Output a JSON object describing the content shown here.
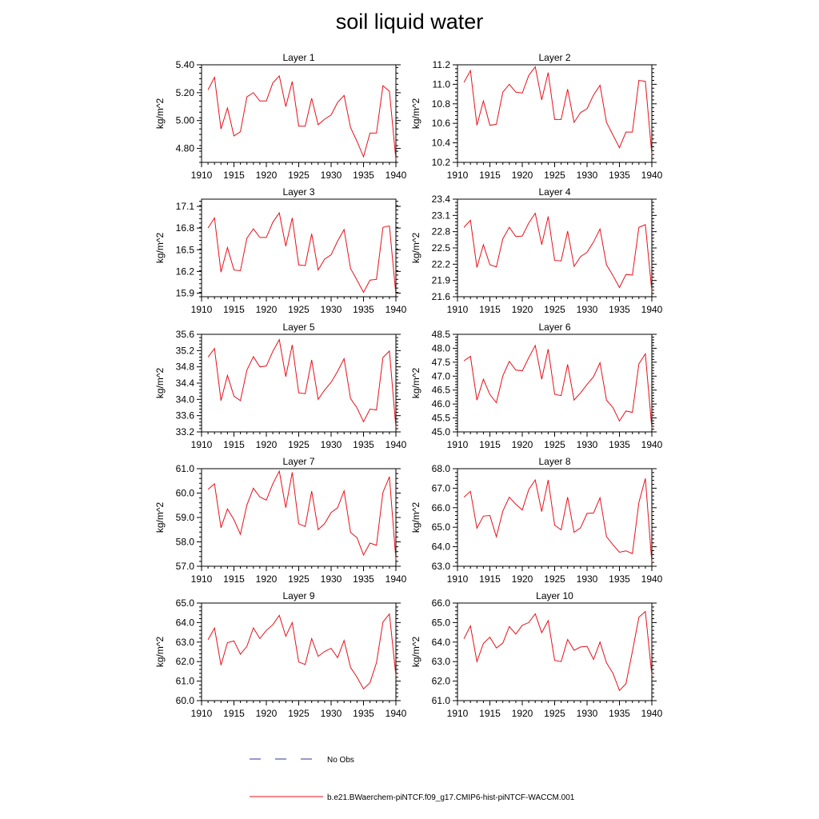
{
  "title": "soil liquid water",
  "legend": {
    "obs_label": "No Obs",
    "obs_color": "#2b3a8c",
    "model_label": "b.e21.BWaerchem-piNTCF.f09_g17.CMIP6-hist-piNTCF-WACCM.001",
    "model_color": "#e8101a"
  },
  "chart_data": [
    {
      "type": "line",
      "title": "Layer 1",
      "ylabel": "kg/m^2",
      "xlim": [
        1910,
        1940
      ],
      "ylim": [
        4.7,
        5.4
      ],
      "xticks": [
        "1910",
        "1915",
        "1920",
        "1925",
        "1930",
        "1935",
        "1940"
      ],
      "yticks": [
        "4.80",
        "5.00",
        "5.20",
        "5.40"
      ],
      "series": [
        {
          "x": [
            1911,
            1912,
            1913,
            1914,
            1915,
            1916,
            1917,
            1918,
            1919,
            1920,
            1921,
            1922,
            1923,
            1924,
            1925,
            1926,
            1927,
            1928,
            1929,
            1930,
            1931,
            1932,
            1933,
            1934,
            1935,
            1936,
            1937,
            1938,
            1939,
            1940
          ],
          "values": [
            5.22,
            5.31,
            4.94,
            5.09,
            4.89,
            4.92,
            5.17,
            5.2,
            5.14,
            5.14,
            5.27,
            5.32,
            5.1,
            5.28,
            4.96,
            4.96,
            5.16,
            4.97,
            5.01,
            5.04,
            5.13,
            5.18,
            4.95,
            4.85,
            4.74,
            4.91,
            4.91,
            5.25,
            5.21,
            4.72
          ]
        }
      ]
    },
    {
      "type": "line",
      "title": "Layer 2",
      "ylabel": "kg/m^2",
      "xlim": [
        1910,
        1940
      ],
      "ylim": [
        10.2,
        11.2
      ],
      "xticks": [
        "1910",
        "1915",
        "1920",
        "1925",
        "1930",
        "1935",
        "1940"
      ],
      "yticks": [
        "10.2",
        "10.4",
        "10.6",
        "10.8",
        "11.0",
        "11.2"
      ],
      "series": [
        {
          "x": [
            1911,
            1912,
            1913,
            1914,
            1915,
            1916,
            1917,
            1918,
            1919,
            1920,
            1921,
            1922,
            1923,
            1924,
            1925,
            1926,
            1927,
            1928,
            1929,
            1930,
            1931,
            1932,
            1933,
            1934,
            1935,
            1936,
            1937,
            1938,
            1939,
            1940
          ],
          "values": [
            11.02,
            11.14,
            10.58,
            10.83,
            10.58,
            10.59,
            10.92,
            11.0,
            10.92,
            10.91,
            11.09,
            11.18,
            10.84,
            11.12,
            10.64,
            10.64,
            10.95,
            10.61,
            10.71,
            10.75,
            10.89,
            10.99,
            10.61,
            10.48,
            10.35,
            10.51,
            10.51,
            11.04,
            11.03,
            10.28
          ]
        }
      ]
    },
    {
      "type": "line",
      "title": "Layer 3",
      "ylabel": "kg/m^2",
      "xlim": [
        1910,
        1940
      ],
      "ylim": [
        15.85,
        17.2
      ],
      "xticks": [
        "1910",
        "1915",
        "1920",
        "1925",
        "1930",
        "1935",
        "1940"
      ],
      "yticks": [
        "15.9",
        "16.2",
        "16.5",
        "16.8",
        "17.1"
      ],
      "series": [
        {
          "x": [
            1911,
            1912,
            1913,
            1914,
            1915,
            1916,
            1917,
            1918,
            1919,
            1920,
            1921,
            1922,
            1923,
            1924,
            1925,
            1926,
            1927,
            1928,
            1929,
            1930,
            1931,
            1932,
            1933,
            1934,
            1935,
            1936,
            1937,
            1938,
            1939,
            1940
          ],
          "values": [
            16.8,
            16.94,
            16.19,
            16.53,
            16.22,
            16.21,
            16.66,
            16.79,
            16.67,
            16.67,
            16.88,
            17.01,
            16.55,
            16.94,
            16.29,
            16.28,
            16.72,
            16.22,
            16.37,
            16.43,
            16.62,
            16.78,
            16.24,
            16.08,
            15.91,
            16.08,
            16.09,
            16.81,
            16.83,
            15.88
          ]
        }
      ]
    },
    {
      "type": "line",
      "title": "Layer 4",
      "ylabel": "kg/m^2",
      "xlim": [
        1910,
        1940
      ],
      "ylim": [
        21.6,
        23.4
      ],
      "xticks": [
        "1910",
        "1915",
        "1920",
        "1925",
        "1930",
        "1935",
        "1940"
      ],
      "yticks": [
        "21.6",
        "21.9",
        "22.2",
        "22.5",
        "22.8",
        "23.1",
        "23.4"
      ],
      "series": [
        {
          "x": [
            1911,
            1912,
            1913,
            1914,
            1915,
            1916,
            1917,
            1918,
            1919,
            1920,
            1921,
            1922,
            1923,
            1924,
            1925,
            1926,
            1927,
            1928,
            1929,
            1930,
            1931,
            1932,
            1933,
            1934,
            1935,
            1936,
            1937,
            1938,
            1939,
            1940
          ],
          "values": [
            22.88,
            23.01,
            22.14,
            22.56,
            22.19,
            22.15,
            22.67,
            22.88,
            22.71,
            22.72,
            22.96,
            23.14,
            22.56,
            23.08,
            22.27,
            22.26,
            22.81,
            22.16,
            22.34,
            22.42,
            22.61,
            22.85,
            22.19,
            21.99,
            21.77,
            22.01,
            22.0,
            22.88,
            22.93,
            21.7
          ]
        }
      ]
    },
    {
      "type": "line",
      "title": "Layer 5",
      "ylabel": "kg/m^2",
      "xlim": [
        1910,
        1940
      ],
      "ylim": [
        33.2,
        35.6
      ],
      "xticks": [
        "1910",
        "1915",
        "1920",
        "1925",
        "1930",
        "1935",
        "1940"
      ],
      "yticks": [
        "33.2",
        "33.6",
        "34.0",
        "34.4",
        "34.8",
        "35.2",
        "35.6"
      ],
      "series": [
        {
          "x": [
            1911,
            1912,
            1913,
            1914,
            1915,
            1916,
            1917,
            1918,
            1919,
            1920,
            1921,
            1922,
            1923,
            1924,
            1925,
            1926,
            1927,
            1928,
            1929,
            1930,
            1931,
            1932,
            1933,
            1934,
            1935,
            1936,
            1937,
            1938,
            1939,
            1940
          ],
          "values": [
            35.04,
            35.25,
            33.97,
            34.59,
            34.08,
            33.97,
            34.72,
            35.05,
            34.8,
            34.82,
            35.18,
            35.47,
            34.56,
            35.34,
            34.16,
            34.14,
            34.97,
            34.0,
            34.23,
            34.42,
            34.69,
            35.0,
            34.02,
            33.79,
            33.45,
            33.76,
            33.74,
            35.03,
            35.19,
            33.31
          ]
        }
      ]
    },
    {
      "type": "line",
      "title": "Layer 6",
      "ylabel": "kg/m^2",
      "xlim": [
        1910,
        1940
      ],
      "ylim": [
        45.0,
        48.5
      ],
      "xticks": [
        "1910",
        "1915",
        "1920",
        "1925",
        "1930",
        "1935",
        "1940"
      ],
      "yticks": [
        "45.0",
        "45.5",
        "46.0",
        "46.5",
        "47.0",
        "47.5",
        "48.0",
        "48.5"
      ],
      "series": [
        {
          "x": [
            1911,
            1912,
            1913,
            1914,
            1915,
            1916,
            1917,
            1918,
            1919,
            1920,
            1921,
            1922,
            1923,
            1924,
            1925,
            1926,
            1927,
            1928,
            1929,
            1930,
            1931,
            1932,
            1933,
            1934,
            1935,
            1936,
            1937,
            1938,
            1939,
            1940
          ],
          "values": [
            47.55,
            47.71,
            46.14,
            46.89,
            46.34,
            46.05,
            47.01,
            47.53,
            47.22,
            47.19,
            47.66,
            48.1,
            46.89,
            47.97,
            46.35,
            46.3,
            47.42,
            46.14,
            46.4,
            46.7,
            46.98,
            47.48,
            46.14,
            45.87,
            45.39,
            45.75,
            45.7,
            47.44,
            47.8,
            45.13
          ]
        }
      ]
    },
    {
      "type": "line",
      "title": "Layer 7",
      "ylabel": "kg/m^2",
      "xlim": [
        1910,
        1940
      ],
      "ylim": [
        57.0,
        61.0
      ],
      "xticks": [
        "1910",
        "1915",
        "1920",
        "1925",
        "1930",
        "1935",
        "1940"
      ],
      "yticks": [
        "57.0",
        "58.0",
        "59.0",
        "60.0",
        "61.0"
      ],
      "series": [
        {
          "x": [
            1911,
            1912,
            1913,
            1914,
            1915,
            1916,
            1917,
            1918,
            1919,
            1920,
            1921,
            1922,
            1923,
            1924,
            1925,
            1926,
            1927,
            1928,
            1929,
            1930,
            1931,
            1932,
            1933,
            1934,
            1935,
            1936,
            1937,
            1938,
            1939,
            1940
          ],
          "values": [
            60.15,
            60.38,
            58.58,
            59.35,
            58.91,
            58.31,
            59.51,
            60.2,
            59.84,
            59.71,
            60.38,
            60.9,
            59.4,
            60.85,
            58.74,
            58.63,
            60.08,
            58.5,
            58.75,
            59.2,
            59.4,
            60.09,
            58.39,
            58.17,
            57.46,
            57.95,
            57.86,
            60.03,
            60.67,
            57.27
          ]
        }
      ]
    },
    {
      "type": "line",
      "title": "Layer 8",
      "ylabel": "kg/m^2",
      "xlim": [
        1910,
        1940
      ],
      "ylim": [
        63.0,
        68.0
      ],
      "xticks": [
        "1910",
        "1915",
        "1920",
        "1925",
        "1930",
        "1935",
        "1940"
      ],
      "yticks": [
        "63.0",
        "64.0",
        "65.0",
        "66.0",
        "67.0",
        "68.0"
      ],
      "series": [
        {
          "x": [
            1911,
            1912,
            1913,
            1914,
            1915,
            1916,
            1917,
            1918,
            1919,
            1920,
            1921,
            1922,
            1923,
            1924,
            1925,
            1926,
            1927,
            1928,
            1929,
            1930,
            1931,
            1932,
            1933,
            1934,
            1935,
            1936,
            1937,
            1938,
            1939,
            1940
          ],
          "values": [
            66.54,
            66.84,
            64.95,
            65.57,
            65.6,
            64.51,
            65.83,
            66.54,
            66.18,
            65.88,
            66.93,
            67.42,
            65.8,
            67.42,
            65.1,
            64.87,
            66.54,
            64.74,
            64.97,
            65.71,
            65.73,
            66.51,
            64.52,
            64.1,
            63.72,
            63.79,
            63.65,
            66.27,
            67.5,
            63.19
          ]
        }
      ]
    },
    {
      "type": "line",
      "title": "Layer 9",
      "ylabel": "kg/m^2",
      "xlim": [
        1910,
        1940
      ],
      "ylim": [
        60.0,
        65.0
      ],
      "xticks": [
        "1910",
        "1915",
        "1920",
        "1925",
        "1930",
        "1935",
        "1940"
      ],
      "yticks": [
        "60.0",
        "61.0",
        "62.0",
        "63.0",
        "64.0",
        "65.0"
      ],
      "series": [
        {
          "x": [
            1911,
            1912,
            1913,
            1914,
            1915,
            1916,
            1917,
            1918,
            1919,
            1920,
            1921,
            1922,
            1923,
            1924,
            1925,
            1926,
            1927,
            1928,
            1929,
            1930,
            1931,
            1932,
            1933,
            1934,
            1935,
            1936,
            1937,
            1938,
            1939,
            1940
          ],
          "values": [
            63.12,
            63.72,
            61.82,
            62.97,
            63.06,
            62.38,
            62.78,
            63.73,
            63.18,
            63.6,
            63.89,
            64.37,
            63.3,
            64.0,
            61.98,
            61.85,
            63.18,
            62.27,
            62.52,
            62.68,
            62.2,
            63.08,
            61.7,
            61.2,
            60.6,
            60.92,
            61.94,
            64.03,
            64.44,
            61.28
          ]
        }
      ]
    },
    {
      "type": "line",
      "title": "Layer 10",
      "ylabel": "kg/m^2",
      "xlim": [
        1910,
        1940
      ],
      "ylim": [
        61.0,
        66.0
      ],
      "xticks": [
        "1910",
        "1915",
        "1920",
        "1925",
        "1930",
        "1935",
        "1940"
      ],
      "yticks": [
        "61.0",
        "62.0",
        "63.0",
        "64.0",
        "65.0",
        "66.0"
      ],
      "series": [
        {
          "x": [
            1911,
            1912,
            1913,
            1914,
            1915,
            1916,
            1917,
            1918,
            1919,
            1920,
            1921,
            1922,
            1923,
            1924,
            1925,
            1926,
            1927,
            1928,
            1929,
            1930,
            1931,
            1932,
            1933,
            1934,
            1935,
            1936,
            1937,
            1938,
            1939,
            1940
          ],
          "values": [
            64.17,
            64.83,
            63.0,
            63.93,
            64.25,
            63.7,
            63.95,
            64.8,
            64.41,
            64.86,
            65.0,
            65.45,
            64.48,
            65.1,
            63.06,
            63.0,
            64.13,
            63.58,
            63.75,
            63.78,
            63.11,
            64.0,
            62.94,
            62.4,
            61.52,
            61.86,
            63.52,
            65.27,
            65.57,
            62.31
          ]
        }
      ]
    }
  ]
}
